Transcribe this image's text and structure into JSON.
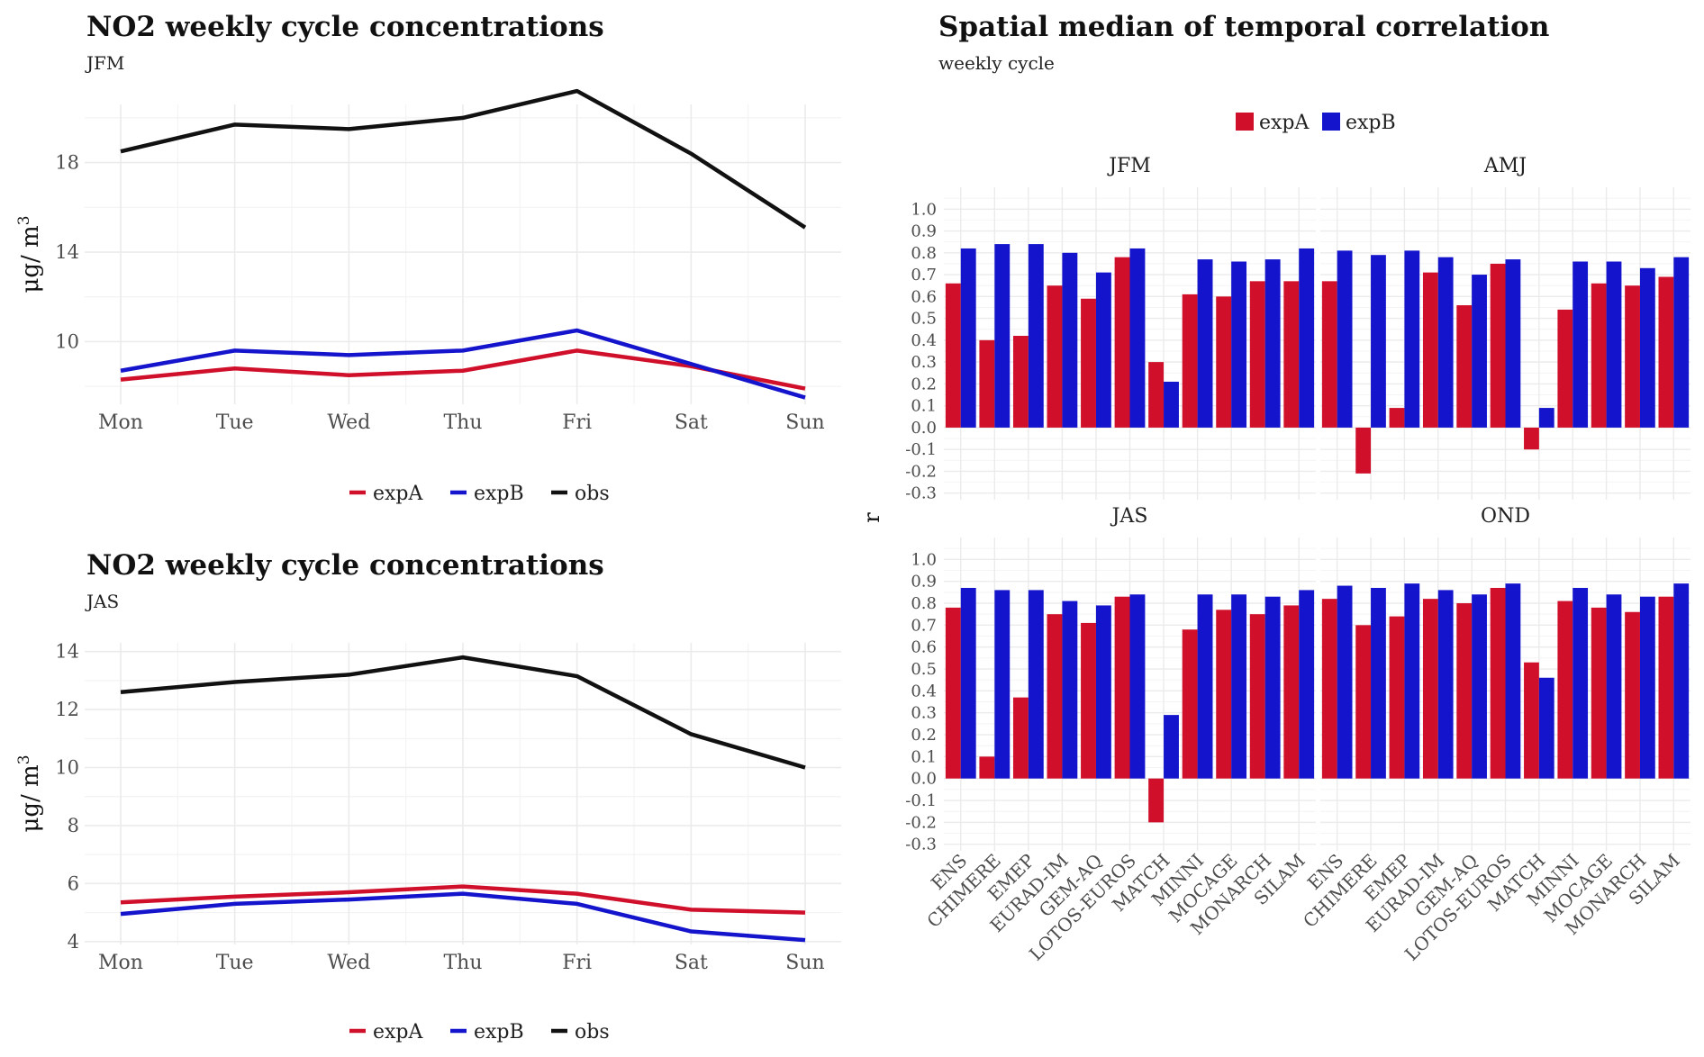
{
  "colors": {
    "expA": "#d0102b",
    "expB": "#1414cc",
    "obs": "#111111",
    "grid": "#ebebeb",
    "text": "#4d4d4d"
  },
  "line_panels": [
    {
      "title": "NO2 weekly cycle concentrations",
      "subtitle": "JFM",
      "ylabel": "μg/ m",
      "ylabel_sup": "3"
    },
    {
      "title": "NO2 weekly cycle concentrations",
      "subtitle": "JAS",
      "ylabel": "μg/ m",
      "ylabel_sup": "3"
    }
  ],
  "bar_panel": {
    "title": "Spatial median of temporal correlation",
    "subtitle": "weekly cycle",
    "ylabel": "r",
    "legend": [
      "expA",
      "expB"
    ]
  },
  "chart_data": [
    {
      "type": "line",
      "title": "NO2 weekly cycle concentrations",
      "subtitle": "JFM",
      "x": [
        "Mon",
        "Tue",
        "Wed",
        "Thu",
        "Fri",
        "Sat",
        "Sun"
      ],
      "ylabel": "μg/ m3",
      "ylim": [
        7.2,
        20.6
      ],
      "yticks": [
        10,
        14,
        18
      ],
      "grid": true,
      "legend": "bottom",
      "series": [
        {
          "name": "expA",
          "values": [
            8.3,
            8.8,
            8.5,
            8.7,
            9.6,
            8.9,
            7.9
          ]
        },
        {
          "name": "expB",
          "values": [
            8.7,
            9.6,
            9.4,
            9.6,
            10.5,
            9.0,
            7.5
          ]
        },
        {
          "name": "obs",
          "values": [
            18.5,
            19.7,
            19.5,
            20.0,
            21.2,
            18.4,
            15.1
          ]
        }
      ]
    },
    {
      "type": "line",
      "title": "NO2 weekly cycle concentrations",
      "subtitle": "JAS",
      "x": [
        "Mon",
        "Tue",
        "Wed",
        "Thu",
        "Fri",
        "Sat",
        "Sun"
      ],
      "ylabel": "μg/ m3",
      "ylim": [
        3.9,
        14.3
      ],
      "yticks": [
        4,
        6,
        8,
        10,
        12,
        14
      ],
      "grid": true,
      "legend": "bottom",
      "series": [
        {
          "name": "expA",
          "values": [
            5.35,
            5.55,
            5.7,
            5.9,
            5.65,
            5.1,
            5.0
          ]
        },
        {
          "name": "expB",
          "values": [
            4.95,
            5.3,
            5.45,
            5.65,
            5.3,
            4.35,
            4.05
          ]
        },
        {
          "name": "obs",
          "values": [
            12.6,
            12.95,
            13.2,
            13.8,
            13.15,
            11.15,
            10.0
          ]
        }
      ]
    },
    {
      "type": "bar",
      "title": "Spatial median of temporal correlation",
      "subtitle": "weekly cycle",
      "ylabel": "r",
      "ylim": [
        -0.33,
        1.1
      ],
      "yticks": [
        -0.3,
        -0.2,
        -0.1,
        0.0,
        0.1,
        0.2,
        0.3,
        0.4,
        0.5,
        0.6,
        0.7,
        0.8,
        0.9,
        1.0
      ],
      "grid": true,
      "legend": "top",
      "categories": [
        "ENS",
        "CHIMERE",
        "EMEP",
        "EURAD-IM",
        "GEM-AQ",
        "LOTOS-EUROS",
        "MATCH",
        "MINNI",
        "MOCAGE",
        "MONARCH",
        "SILAM"
      ],
      "facets": [
        {
          "name": "JFM",
          "series": [
            {
              "name": "expA",
              "values": [
                0.66,
                0.4,
                0.42,
                0.65,
                0.59,
                0.78,
                0.3,
                0.61,
                0.6,
                0.67,
                0.67
              ]
            },
            {
              "name": "expB",
              "values": [
                0.82,
                0.84,
                0.84,
                0.8,
                0.71,
                0.82,
                0.21,
                0.77,
                0.76,
                0.77,
                0.82
              ]
            }
          ]
        },
        {
          "name": "AMJ",
          "series": [
            {
              "name": "expA",
              "values": [
                0.67,
                -0.21,
                0.09,
                0.71,
                0.56,
                0.75,
                -0.1,
                0.54,
                0.66,
                0.65,
                0.69
              ]
            },
            {
              "name": "expB",
              "values": [
                0.81,
                0.79,
                0.81,
                0.78,
                0.7,
                0.77,
                0.09,
                0.76,
                0.76,
                0.73,
                0.78
              ]
            }
          ]
        },
        {
          "name": "JAS",
          "series": [
            {
              "name": "expA",
              "values": [
                0.78,
                0.1,
                0.37,
                0.75,
                0.71,
                0.83,
                -0.2,
                0.68,
                0.77,
                0.75,
                0.79
              ]
            },
            {
              "name": "expB",
              "values": [
                0.87,
                0.86,
                0.86,
                0.81,
                0.79,
                0.84,
                0.29,
                0.84,
                0.84,
                0.83,
                0.86
              ]
            }
          ]
        },
        {
          "name": "OND",
          "series": [
            {
              "name": "expA",
              "values": [
                0.82,
                0.7,
                0.74,
                0.82,
                0.8,
                0.87,
                0.53,
                0.81,
                0.78,
                0.76,
                0.83
              ]
            },
            {
              "name": "expB",
              "values": [
                0.88,
                0.87,
                0.89,
                0.86,
                0.84,
                0.89,
                0.46,
                0.87,
                0.84,
                0.83,
                0.89
              ]
            }
          ]
        }
      ]
    }
  ]
}
